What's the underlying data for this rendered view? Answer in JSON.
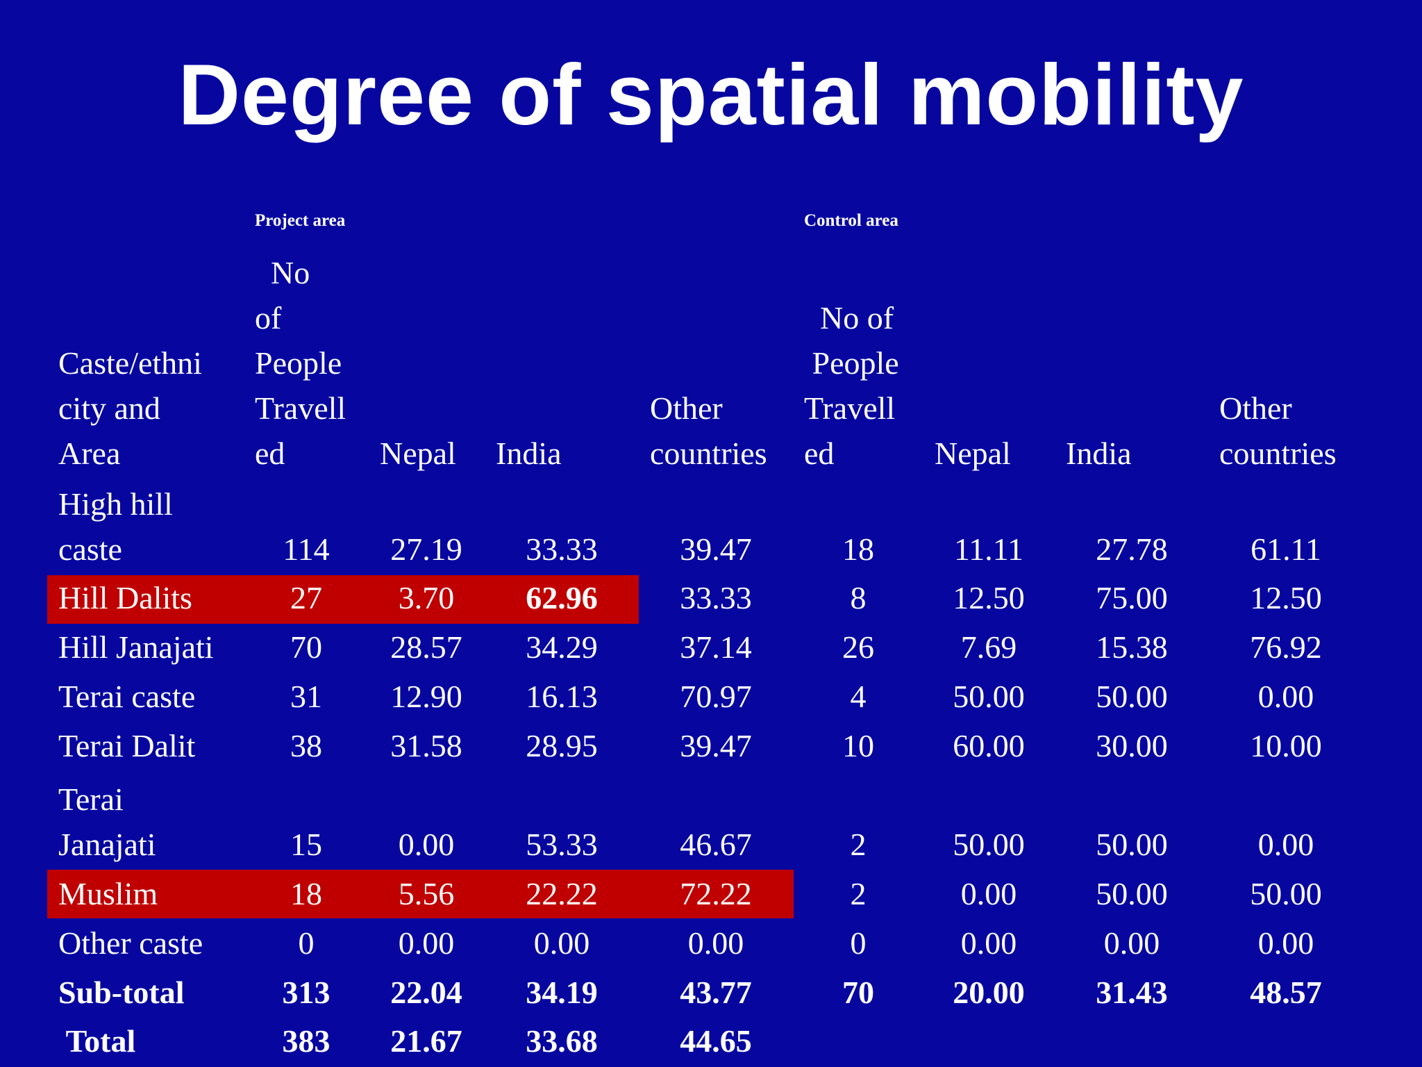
{
  "title": "Degree of spatial mobility",
  "project_area_label": "Project  area",
  "control_area_label": "Control area",
  "headers": {
    "category": [
      "Caste/ethni",
      "city and",
      "Area"
    ],
    "project_people": [
      "  No",
      "of",
      "People",
      "Travell",
      "ed"
    ],
    "project_nepal": "Nepal",
    "project_india": "India",
    "project_other": [
      "Other",
      "countries"
    ],
    "control_people": [
      "  No of",
      " People",
      "Travell",
      "ed"
    ],
    "control_nepal": "Nepal",
    "control_india": "India",
    "control_other": [
      "Other",
      "countries"
    ]
  },
  "rows": [
    {
      "label": [
        "High hill",
        "caste"
      ],
      "values": [
        "114",
        "27.19",
        "33.33",
        "39.47",
        "18",
        "11.11",
        "27.78",
        "61.11"
      ]
    },
    {
      "label": [
        "Hill Dalits"
      ],
      "values": [
        "27",
        "3.70",
        "62.96",
        "33.33",
        "8",
        "12.50",
        "75.00",
        "12.50"
      ]
    },
    {
      "label": [
        "Hill Janajati"
      ],
      "values": [
        "70",
        "28.57",
        "34.29",
        "37.14",
        "26",
        "7.69",
        "15.38",
        "76.92"
      ]
    },
    {
      "label": [
        "Terai caste"
      ],
      "values": [
        "31",
        "12.90",
        "16.13",
        "70.97",
        "4",
        "50.00",
        "50.00",
        "0.00"
      ]
    },
    {
      "label": [
        "Terai Dalit"
      ],
      "values": [
        "38",
        "31.58",
        "28.95",
        "39.47",
        "10",
        "60.00",
        "30.00",
        "10.00"
      ]
    },
    {
      "label": [
        "Terai",
        "Janajati"
      ],
      "values": [
        "15",
        "0.00",
        "53.33",
        "46.67",
        "2",
        "50.00",
        "50.00",
        "0.00"
      ]
    },
    {
      "label": [
        "Muslim"
      ],
      "values": [
        "18",
        "5.56",
        "22.22",
        "72.22",
        "2",
        "0.00",
        "50.00",
        "50.00"
      ]
    },
    {
      "label": [
        "Other caste"
      ],
      "values": [
        "0",
        "0.00",
        "0.00",
        "0.00",
        "0",
        "0.00",
        "0.00",
        "0.00"
      ]
    },
    {
      "label": [
        "Sub-total"
      ],
      "values": [
        "313",
        "22.04",
        "34.19",
        "43.77",
        "70",
        "20.00",
        "31.43",
        "48.57"
      ]
    },
    {
      "label": [
        " Total"
      ],
      "values": [
        "383",
        "21.67",
        "33.68",
        "44.65",
        "",
        "",
        "",
        ""
      ]
    }
  ],
  "highlight_color": "#c00000",
  "background_color": "#0707a0"
}
